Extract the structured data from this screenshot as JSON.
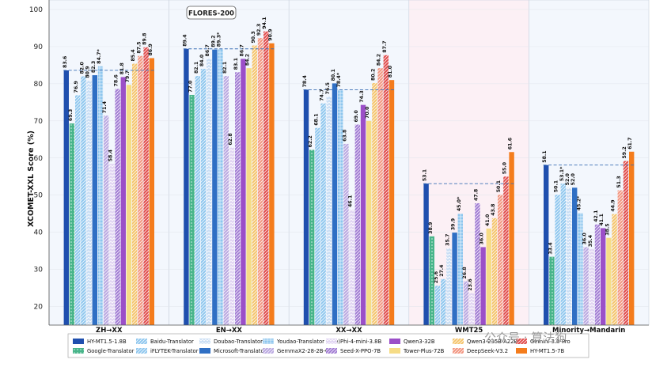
{
  "chart_data": {
    "type": "bar",
    "ylabel": "XCOMET-XXL Score (%)",
    "ylim": [
      15,
      100
    ],
    "yticks": [
      20,
      30,
      40,
      50,
      60,
      70,
      80,
      90,
      100
    ],
    "annotation": "FLORES-200",
    "watermark": "公众号 · 算法狗",
    "legend_position": "bottom",
    "categories": [
      "ZH→XX",
      "EN→XX",
      "XX→XX",
      "WMT25",
      "Minority→Mandarin"
    ],
    "reference_lines": [
      83.6,
      89.4,
      78.4,
      53.1,
      58.1
    ],
    "series": [
      {
        "name": "HY-MT1.5-1.8B",
        "color": "#1f4fae",
        "pattern": "solid",
        "values": [
          83.6,
          89.4,
          78.4,
          53.1,
          58.1
        ],
        "labels": [
          "83.6",
          "89.4",
          "78.4",
          "53.1",
          "58.1"
        ]
      },
      {
        "name": "Google-Translator",
        "color": "#48b58a",
        "pattern": "dots",
        "values": [
          69.3,
          77.0,
          62.2,
          38.9,
          33.4
        ],
        "labels": [
          "69.3",
          "77.0",
          "62.2",
          "38.9",
          "33.4"
        ]
      },
      {
        "name": "Baidu-Translator",
        "color": "#8ec6ee",
        "pattern": "hatch",
        "values": [
          76.9,
          82.1,
          68.1,
          25.6,
          50.1
        ],
        "labels": [
          "76.9",
          "82.1",
          "68.1",
          "25.6",
          "50.1"
        ]
      },
      {
        "name": "iFLYTEK-Translator",
        "color": "#8ec6ee",
        "pattern": "hatch",
        "values": [
          82.0,
          84.0,
          74.7,
          27.4,
          53.1
        ],
        "labels": [
          "82.0",
          "84.0",
          "74.7",
          "27.4",
          "53.1*"
        ]
      },
      {
        "name": "Doubao-Translator",
        "color": "#c8ddf4",
        "pattern": "chevron",
        "values": [
          80.9,
          86.7,
          76.5,
          35.7,
          52.0
        ],
        "labels": [
          "80.9",
          "86.7",
          "76.5",
          "35.7",
          "52.0"
        ]
      },
      {
        "name": "Microsoft-Translator",
        "color": "#2f6fc4",
        "pattern": "solid",
        "values": [
          82.3,
          89.2,
          80.1,
          39.9,
          52.0
        ],
        "labels": [
          "82.3",
          "89.2",
          "80.1",
          "39.9",
          "52.0"
        ]
      },
      {
        "name": "Youdao-Translator (Lite)",
        "color": "#8ec6ee",
        "pattern": "grid",
        "values": [
          84.7,
          89.3,
          78.4,
          45.0,
          45.2
        ],
        "labels": [
          "84.7*",
          "89.3*",
          "78.4*",
          "45.0*",
          "45.2*"
        ]
      },
      {
        "name": "GemmaX2-28-2B-v0.1",
        "color": "#b9a7e0",
        "pattern": "hatch",
        "values": [
          71.4,
          82.1,
          63.8,
          26.8,
          36.0
        ],
        "labels": [
          "71.4",
          "82.1",
          "63.8",
          "26.8",
          "36.0"
        ]
      },
      {
        "name": "Phi-4-mini-3.8B",
        "color": "#e0d4f2",
        "pattern": "chevron",
        "values": [
          58.4,
          62.8,
          46.1,
          23.6,
          35.4
        ],
        "labels": [
          "58.4",
          "62.8",
          "46.1",
          "23.6",
          "35.4"
        ]
      },
      {
        "name": "Seed-X-PPO-7B",
        "color": "#a07ad2",
        "pattern": "hatch",
        "values": [
          78.6,
          83.1,
          69.0,
          47.8,
          42.1
        ],
        "labels": [
          "78.6",
          "83.1",
          "69.0",
          "47.8",
          "42.1"
        ]
      },
      {
        "name": "Qwen3-32B",
        "color": "#9b4fc8",
        "pattern": "solid",
        "values": [
          81.8,
          86.7,
          74.3,
          36.0,
          41.1
        ],
        "labels": [
          "81.8",
          "86.7",
          "74.3",
          "36.0",
          "41.1"
        ]
      },
      {
        "name": "Tower-Plus-72B",
        "color": "#f6dc86",
        "pattern": "solid",
        "values": [
          79.7,
          84.2,
          70.0,
          41.0,
          38.5
        ],
        "labels": [
          "79.7",
          "84.2",
          "70.0",
          "41.0",
          "38.5"
        ]
      },
      {
        "name": "Qwen3-235B-A22B",
        "color": "#f4c36a",
        "pattern": "hatch",
        "values": [
          85.4,
          90.3,
          80.2,
          43.8,
          44.9
        ],
        "labels": [
          "85.4",
          "90.3",
          "80.2",
          "43.8",
          "44.9"
        ]
      },
      {
        "name": "DeepSeek-V3.2",
        "color": "#f2937d",
        "pattern": "hatch",
        "values": [
          87.5,
          92.3,
          84.2,
          50.1,
          51.3
        ],
        "labels": [
          "87.5",
          "92.3",
          "84.2",
          "50.1",
          "51.3"
        ]
      },
      {
        "name": "Gemini-3.0-Pro",
        "color": "#e04a4a",
        "pattern": "hatch",
        "values": [
          89.8,
          94.1,
          87.7,
          55.0,
          59.2
        ],
        "labels": [
          "89.8",
          "94.1",
          "87.7",
          "55.0",
          "59.2"
        ]
      },
      {
        "name": "HY-MT1.5-7B",
        "color": "#f47c1c",
        "pattern": "solid",
        "values": [
          86.9,
          90.9,
          81.0,
          61.6,
          61.7
        ],
        "labels": [
          "86.9",
          "90.9",
          "81.0",
          "61.6",
          "61.7"
        ]
      }
    ],
    "legend_order": [
      0,
      2,
      4,
      6,
      8,
      10,
      12,
      14,
      1,
      3,
      5,
      7,
      9,
      11,
      13,
      15
    ]
  }
}
